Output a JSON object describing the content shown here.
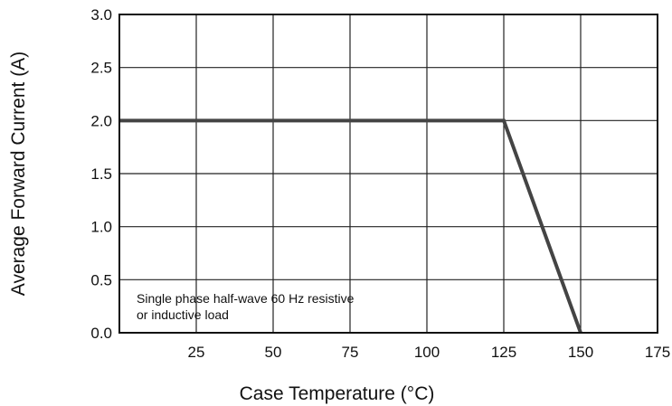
{
  "chart_data": {
    "type": "line",
    "title": "",
    "xlabel": "Case Temperature (°C)",
    "ylabel": "Average Forward Current  (A)",
    "xlim": [
      0,
      175
    ],
    "ylim": [
      0,
      3.0
    ],
    "x_ticks": [
      25,
      50,
      75,
      100,
      125,
      150,
      175
    ],
    "x_tick_labels": [
      "25",
      "50",
      "75",
      "100",
      "125",
      "150",
      "175"
    ],
    "y_ticks": [
      0,
      0.5,
      1.0,
      1.5,
      2.0,
      2.5,
      3.0
    ],
    "y_tick_labels": [
      "0.0",
      "0.5",
      "1.0",
      "1.5",
      "2.0",
      "2.5",
      "3.0"
    ],
    "grid": true,
    "series": [
      {
        "x": [
          0,
          125,
          150
        ],
        "y": [
          2.0,
          2.0,
          0.0
        ],
        "color": "#444444"
      }
    ],
    "annotation": {
      "lines": [
        "Single phase half-wave 60 Hz resistive",
        "or inductive load"
      ]
    }
  }
}
